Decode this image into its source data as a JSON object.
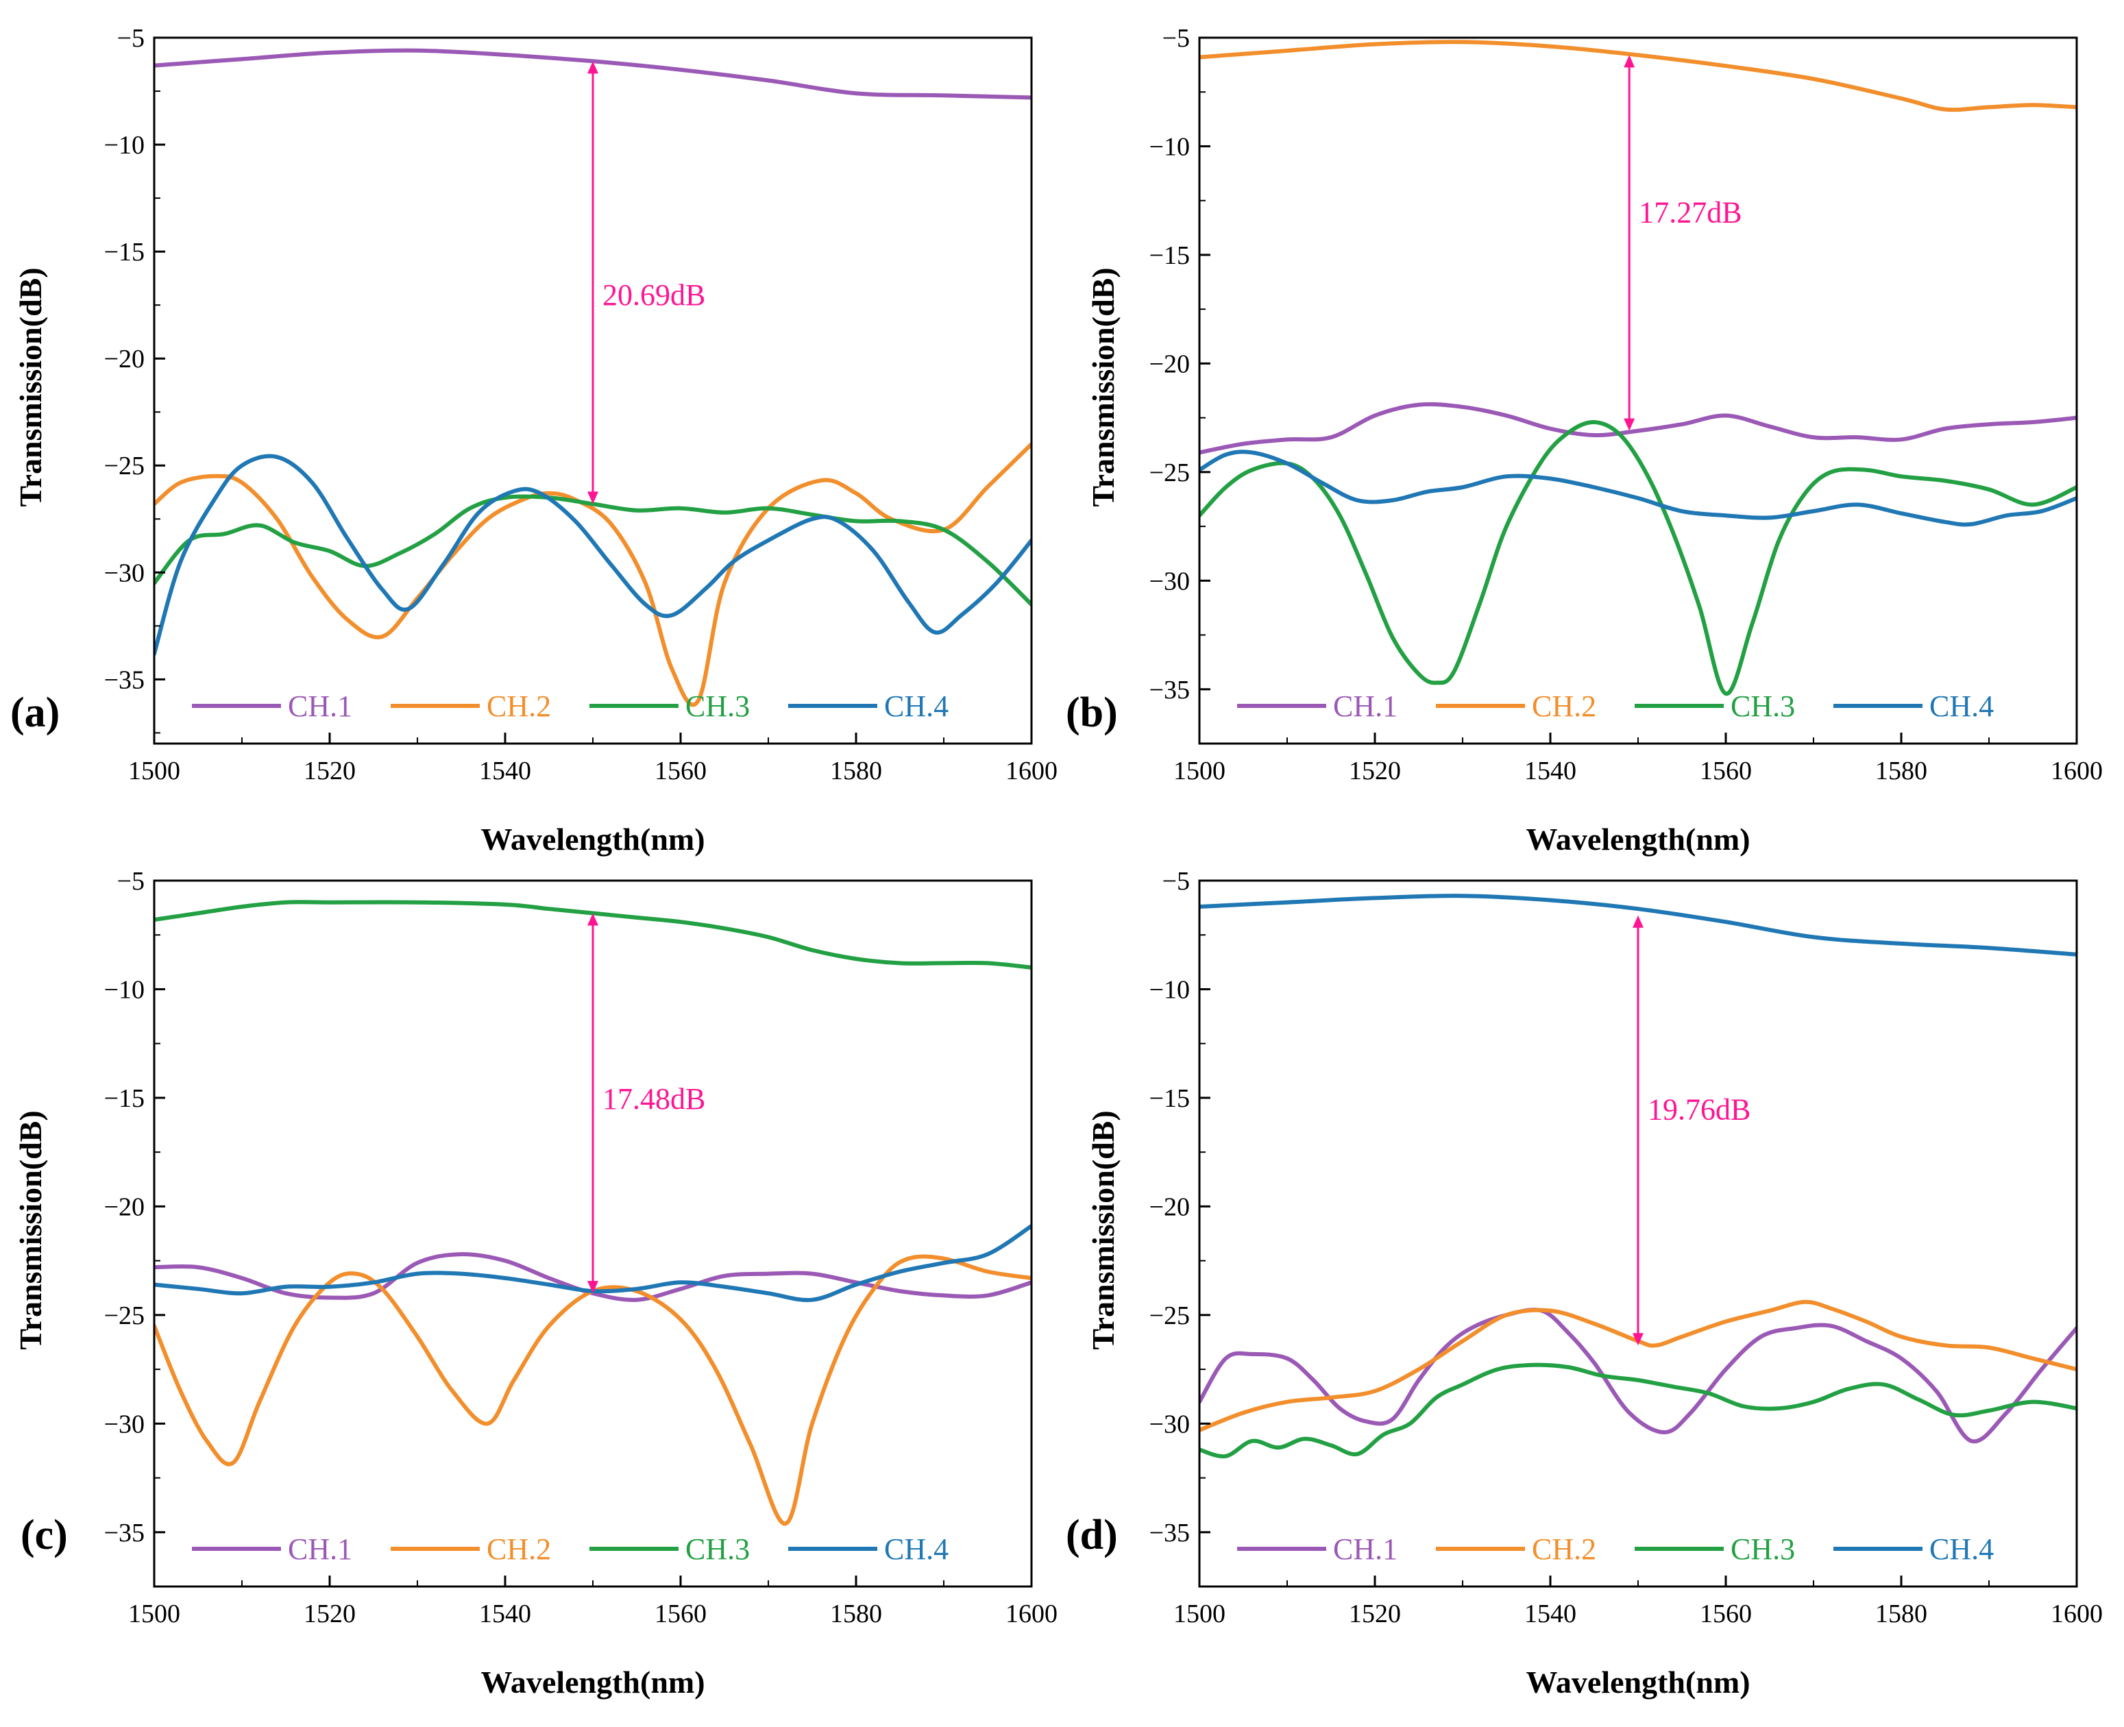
{
  "colors": {
    "CH.1": "#9b59b6",
    "CH.2": "#f28e2b",
    "CH.3": "#22a043",
    "CH.4": "#1f77b4",
    "annotation": "#ff1493"
  },
  "chart_data": [
    {
      "id": "a",
      "type": "line",
      "panel_label": "(a)",
      "xlabel": "Wavelength(nm)",
      "ylabel": "Transmission(dB)",
      "xlim": [
        1500,
        1600
      ],
      "ylim": [
        -38,
        -5
      ],
      "xticks": [
        1500,
        1520,
        1540,
        1560,
        1580,
        1600
      ],
      "yticks": [
        -5,
        -10,
        -15,
        -20,
        -25,
        -30,
        -35
      ],
      "legend": [
        "CH.1",
        "CH.2",
        "CH.3",
        "CH.4"
      ],
      "annotation": {
        "text": "20.69dB",
        "x": 1550,
        "y_top": -6.1,
        "y_bottom": -26.8,
        "label_y": -17.5
      },
      "series": [
        {
          "name": "CH.1",
          "x": [
            1500,
            1510,
            1520,
            1530,
            1540,
            1550,
            1560,
            1570,
            1580,
            1590,
            1600
          ],
          "y": [
            -6.3,
            -6.0,
            -5.7,
            -5.6,
            -5.8,
            -6.1,
            -6.5,
            -7.0,
            -7.6,
            -7.7,
            -7.8
          ]
        },
        {
          "name": "CH.2",
          "x": [
            1500,
            1503,
            1507,
            1510,
            1514,
            1518,
            1522,
            1526,
            1530,
            1534,
            1538,
            1542,
            1545,
            1548,
            1552,
            1556,
            1559,
            1562,
            1565,
            1570,
            1576,
            1580,
            1584,
            1590,
            1595,
            1600
          ],
          "y": [
            -26.8,
            -25.8,
            -25.5,
            -25.8,
            -27.5,
            -30.2,
            -32.2,
            -33.0,
            -31.2,
            -29.2,
            -27.5,
            -26.6,
            -26.3,
            -26.6,
            -27.7,
            -30.5,
            -34.5,
            -36.0,
            -30.5,
            -27.0,
            -25.7,
            -26.3,
            -27.5,
            -28.0,
            -26.0,
            -24.0
          ]
        },
        {
          "name": "CH.3",
          "x": [
            1500,
            1504,
            1508,
            1512,
            1516,
            1520,
            1524,
            1528,
            1532,
            1536,
            1540,
            1545,
            1550,
            1555,
            1560,
            1565,
            1570,
            1575,
            1580,
            1585,
            1590,
            1595,
            1600
          ],
          "y": [
            -30.5,
            -28.5,
            -28.2,
            -27.8,
            -28.6,
            -29.0,
            -29.7,
            -29.1,
            -28.2,
            -27.0,
            -26.5,
            -26.5,
            -26.8,
            -27.1,
            -27.0,
            -27.2,
            -27.0,
            -27.3,
            -27.6,
            -27.6,
            -28.0,
            -29.5,
            -31.5
          ]
        },
        {
          "name": "CH.4",
          "x": [
            1500,
            1503,
            1507,
            1510,
            1514,
            1518,
            1522,
            1526,
            1529,
            1533,
            1537,
            1541,
            1544,
            1548,
            1552,
            1556,
            1559,
            1563,
            1566,
            1570,
            1575,
            1578,
            1582,
            1586,
            1589,
            1592,
            1596,
            1600
          ],
          "y": [
            -33.8,
            -29.5,
            -26.5,
            -25.0,
            -24.6,
            -25.8,
            -28.4,
            -30.8,
            -31.7,
            -29.6,
            -27.2,
            -26.2,
            -26.3,
            -27.6,
            -29.6,
            -31.5,
            -32.0,
            -30.7,
            -29.5,
            -28.5,
            -27.5,
            -27.6,
            -29.0,
            -31.4,
            -32.8,
            -32.0,
            -30.5,
            -28.5
          ]
        }
      ]
    },
    {
      "id": "b",
      "type": "line",
      "panel_label": "(b)",
      "xlabel": "Wavelength(nm)",
      "ylabel": "Transmission(dB)",
      "xlim": [
        1500,
        1600
      ],
      "ylim": [
        -37.5,
        -5
      ],
      "xticks": [
        1500,
        1520,
        1540,
        1560,
        1580,
        1600
      ],
      "yticks": [
        -5,
        -10,
        -15,
        -20,
        -25,
        -30,
        -35
      ],
      "legend": [
        "CH.1",
        "CH.2",
        "CH.3",
        "CH.4"
      ],
      "annotation": {
        "text": "17.27dB",
        "x": 1549,
        "y_top": -5.8,
        "y_bottom": -23.1,
        "label_y": -13.5
      },
      "series": [
        {
          "name": "CH.1",
          "x": [
            1500,
            1505,
            1510,
            1515,
            1520,
            1525,
            1530,
            1535,
            1540,
            1545,
            1550,
            1555,
            1560,
            1565,
            1570,
            1575,
            1580,
            1585,
            1590,
            1595,
            1600
          ],
          "y": [
            -24.1,
            -23.7,
            -23.5,
            -23.4,
            -22.4,
            -21.9,
            -22.0,
            -22.4,
            -23.0,
            -23.3,
            -23.1,
            -22.8,
            -22.4,
            -22.9,
            -23.4,
            -23.4,
            -23.5,
            -23.0,
            -22.8,
            -22.7,
            -22.5
          ]
        },
        {
          "name": "CH.2",
          "x": [
            1500,
            1510,
            1520,
            1530,
            1540,
            1550,
            1560,
            1570,
            1580,
            1585,
            1590,
            1595,
            1600
          ],
          "y": [
            -5.9,
            -5.6,
            -5.3,
            -5.2,
            -5.4,
            -5.8,
            -6.3,
            -6.9,
            -7.8,
            -8.3,
            -8.2,
            -8.1,
            -8.2
          ]
        },
        {
          "name": "CH.3",
          "x": [
            1500,
            1503,
            1506,
            1510,
            1513,
            1516,
            1519,
            1522,
            1525,
            1527,
            1529,
            1532,
            1535,
            1539,
            1542,
            1545,
            1548,
            1551,
            1554,
            1557,
            1560,
            1563,
            1566,
            1569,
            1572,
            1576,
            1580,
            1585,
            1590,
            1595,
            1600
          ],
          "y": [
            -27.0,
            -25.7,
            -24.9,
            -24.6,
            -25.3,
            -27.0,
            -29.7,
            -32.6,
            -34.3,
            -34.7,
            -34.2,
            -31.0,
            -27.5,
            -24.5,
            -23.2,
            -22.7,
            -23.3,
            -25.1,
            -27.8,
            -31.2,
            -35.2,
            -32.0,
            -28.2,
            -26.0,
            -25.0,
            -24.9,
            -25.2,
            -25.4,
            -25.8,
            -26.5,
            -25.7
          ]
        },
        {
          "name": "CH.4",
          "x": [
            1500,
            1503,
            1506,
            1510,
            1514,
            1518,
            1522,
            1526,
            1530,
            1535,
            1540,
            1545,
            1550,
            1555,
            1560,
            1565,
            1570,
            1575,
            1580,
            1585,
            1588,
            1592,
            1596,
            1600
          ],
          "y": [
            -24.9,
            -24.2,
            -24.1,
            -24.6,
            -25.5,
            -26.3,
            -26.3,
            -25.9,
            -25.7,
            -25.2,
            -25.3,
            -25.7,
            -26.2,
            -26.8,
            -27.0,
            -27.1,
            -26.8,
            -26.5,
            -26.9,
            -27.3,
            -27.4,
            -27.0,
            -26.8,
            -26.2
          ]
        }
      ]
    },
    {
      "id": "c",
      "type": "line",
      "panel_label": "(c)",
      "xlabel": "Wavelength(nm)",
      "ylabel": "Transmission(dB)",
      "xlim": [
        1500,
        1600
      ],
      "ylim": [
        -37.5,
        -5
      ],
      "xticks": [
        1500,
        1520,
        1540,
        1560,
        1580,
        1600
      ],
      "yticks": [
        -5,
        -10,
        -15,
        -20,
        -25,
        -30,
        -35
      ],
      "legend": [
        "CH.1",
        "CH.2",
        "CH.3",
        "CH.4"
      ],
      "annotation": {
        "text": "17.48dB",
        "x": 1550,
        "y_top": -6.5,
        "y_bottom": -24.0,
        "label_y": -15.5
      },
      "series": [
        {
          "name": "CH.1",
          "x": [
            1500,
            1505,
            1510,
            1515,
            1520,
            1525,
            1530,
            1535,
            1540,
            1545,
            1550,
            1555,
            1560,
            1565,
            1570,
            1575,
            1580,
            1585,
            1590,
            1595,
            1600
          ],
          "y": [
            -22.8,
            -22.8,
            -23.3,
            -24.0,
            -24.2,
            -24.0,
            -22.6,
            -22.2,
            -22.5,
            -23.3,
            -24.0,
            -24.3,
            -23.8,
            -23.2,
            -23.1,
            -23.1,
            -23.5,
            -23.9,
            -24.1,
            -24.1,
            -23.5
          ]
        },
        {
          "name": "CH.2",
          "x": [
            1500,
            1503,
            1506,
            1509,
            1512,
            1516,
            1520,
            1523,
            1526,
            1530,
            1534,
            1538,
            1541,
            1545,
            1550,
            1555,
            1560,
            1564,
            1568,
            1572,
            1575,
            1579,
            1583,
            1586,
            1590,
            1595,
            1600
          ],
          "y": [
            -25.5,
            -28.5,
            -30.8,
            -31.8,
            -29.0,
            -25.5,
            -23.5,
            -23.1,
            -23.8,
            -26.0,
            -28.5,
            -30.0,
            -28.0,
            -25.5,
            -23.9,
            -23.9,
            -25.2,
            -27.5,
            -31.0,
            -34.6,
            -30.0,
            -25.8,
            -23.3,
            -22.4,
            -22.4,
            -23.0,
            -23.3
          ]
        },
        {
          "name": "CH.3",
          "x": [
            1500,
            1505,
            1510,
            1515,
            1520,
            1530,
            1540,
            1545,
            1550,
            1555,
            1560,
            1565,
            1570,
            1575,
            1580,
            1585,
            1590,
            1595,
            1600
          ],
          "y": [
            -6.8,
            -6.5,
            -6.2,
            -6.0,
            -6.0,
            -6.0,
            -6.1,
            -6.3,
            -6.5,
            -6.7,
            -6.9,
            -7.2,
            -7.6,
            -8.2,
            -8.6,
            -8.8,
            -8.8,
            -8.8,
            -9.0
          ]
        },
        {
          "name": "CH.4",
          "x": [
            1500,
            1505,
            1510,
            1515,
            1520,
            1525,
            1530,
            1535,
            1540,
            1545,
            1550,
            1555,
            1560,
            1565,
            1570,
            1575,
            1580,
            1585,
            1590,
            1595,
            1600
          ],
          "y": [
            -23.6,
            -23.8,
            -24.0,
            -23.7,
            -23.7,
            -23.5,
            -23.1,
            -23.1,
            -23.3,
            -23.6,
            -23.9,
            -23.8,
            -23.5,
            -23.7,
            -24.0,
            -24.3,
            -23.6,
            -23.0,
            -22.6,
            -22.2,
            -20.9
          ]
        }
      ]
    },
    {
      "id": "d",
      "type": "line",
      "panel_label": "(d)",
      "xlabel": "Wavelength(nm)",
      "ylabel": "Transmission(dB)",
      "xlim": [
        1500,
        1600
      ],
      "ylim": [
        -37.5,
        -5
      ],
      "xticks": [
        1500,
        1520,
        1540,
        1560,
        1580,
        1600
      ],
      "yticks": [
        -5,
        -10,
        -15,
        -20,
        -25,
        -30,
        -35
      ],
      "legend": [
        "CH.1",
        "CH.2",
        "CH.3",
        "CH.4"
      ],
      "annotation": {
        "text": "19.76dB",
        "x": 1550,
        "y_top": -6.6,
        "y_bottom": -26.4,
        "label_y": -16.0
      },
      "series": [
        {
          "name": "CH.1",
          "x": [
            1500,
            1503,
            1506,
            1510,
            1513,
            1516,
            1519,
            1522,
            1525,
            1528,
            1531,
            1535,
            1539,
            1542,
            1545,
            1549,
            1553,
            1556,
            1560,
            1564,
            1568,
            1572,
            1576,
            1580,
            1584,
            1588,
            1592,
            1596,
            1600
          ],
          "y": [
            -29.0,
            -27.0,
            -26.8,
            -27.0,
            -28.0,
            -29.3,
            -29.9,
            -29.8,
            -28.0,
            -26.5,
            -25.6,
            -25.0,
            -24.8,
            -25.8,
            -27.2,
            -29.5,
            -30.4,
            -29.5,
            -27.5,
            -26.0,
            -25.6,
            -25.5,
            -26.2,
            -27.0,
            -28.5,
            -30.8,
            -29.5,
            -27.5,
            -25.6
          ]
        },
        {
          "name": "CH.2",
          "x": [
            1500,
            1505,
            1510,
            1515,
            1520,
            1525,
            1530,
            1535,
            1540,
            1545,
            1550,
            1552,
            1555,
            1560,
            1565,
            1569,
            1572,
            1576,
            1580,
            1585,
            1590,
            1595,
            1600
          ],
          "y": [
            -30.3,
            -29.5,
            -29.0,
            -28.8,
            -28.5,
            -27.5,
            -26.2,
            -25.0,
            -24.8,
            -25.4,
            -26.2,
            -26.4,
            -26.0,
            -25.3,
            -24.8,
            -24.4,
            -24.7,
            -25.3,
            -26.0,
            -26.4,
            -26.5,
            -27.0,
            -27.5
          ]
        },
        {
          "name": "CH.3",
          "x": [
            1500,
            1503,
            1506,
            1509,
            1512,
            1515,
            1518,
            1521,
            1524,
            1527,
            1530,
            1534,
            1538,
            1542,
            1546,
            1550,
            1554,
            1558,
            1562,
            1566,
            1570,
            1574,
            1578,
            1582,
            1586,
            1590,
            1595,
            1600
          ],
          "y": [
            -31.2,
            -31.5,
            -30.8,
            -31.1,
            -30.7,
            -31.0,
            -31.4,
            -30.5,
            -30.0,
            -28.8,
            -28.2,
            -27.5,
            -27.3,
            -27.4,
            -27.8,
            -28.0,
            -28.3,
            -28.6,
            -29.2,
            -29.3,
            -29.0,
            -28.4,
            -28.2,
            -28.9,
            -29.6,
            -29.4,
            -29.0,
            -29.3
          ]
        },
        {
          "name": "CH.4",
          "x": [
            1500,
            1510,
            1520,
            1530,
            1540,
            1550,
            1560,
            1570,
            1580,
            1590,
            1600
          ],
          "y": [
            -6.2,
            -6.0,
            -5.8,
            -5.7,
            -5.9,
            -6.3,
            -6.9,
            -7.6,
            -7.9,
            -8.1,
            -8.4
          ]
        }
      ]
    }
  ]
}
